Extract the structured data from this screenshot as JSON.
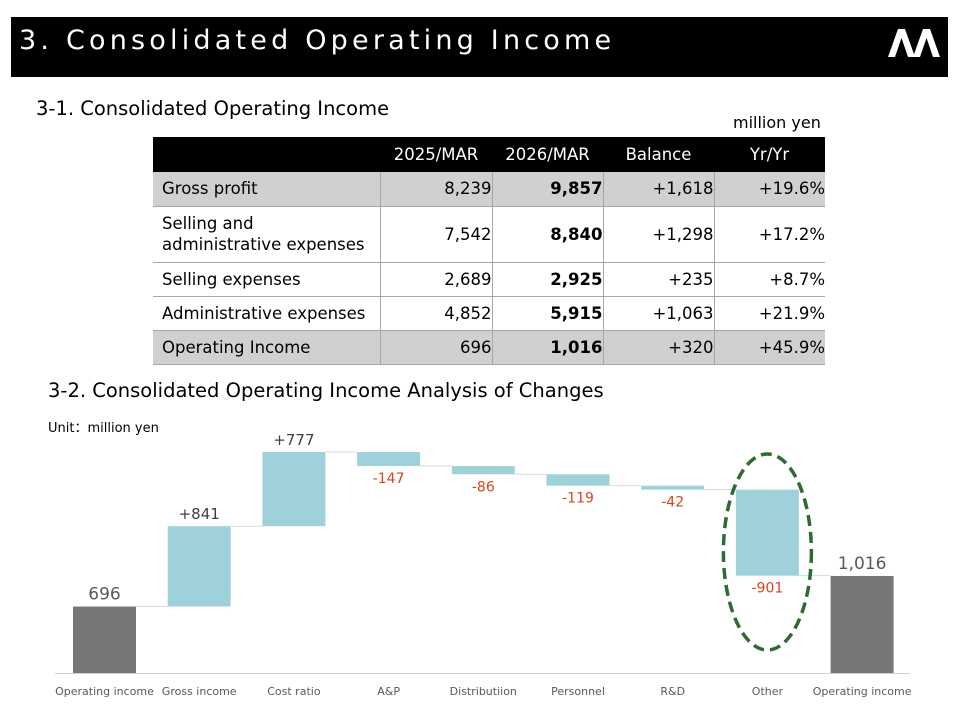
{
  "header": {
    "title": "3.  Consolidated Operating Income"
  },
  "section1": {
    "title": "3-1. Consolidated Operating Income",
    "unit": "million yen",
    "table": {
      "columns": [
        "",
        "2025/MAR",
        "2026/MAR",
        "Balance",
        "Yr/Yr"
      ],
      "rows": [
        {
          "label": "Gross profit",
          "prev": "8,239",
          "curr": "9,857",
          "balance": "+1,618",
          "yoy": "+19.6%",
          "shaded": true
        },
        {
          "label": "Selling and\nadministrative expenses",
          "prev": "7,542",
          "curr": "8,840",
          "balance": "+1,298",
          "yoy": "+17.2%",
          "shaded": false
        },
        {
          "label": "Selling expenses",
          "prev": "2,689",
          "curr": "2,925",
          "balance": "+235",
          "yoy": "+8.7%",
          "shaded": false
        },
        {
          "label": "Administrative expenses",
          "prev": "4,852",
          "curr": "5,915",
          "balance": "+1,063",
          "yoy": "+21.9%",
          "shaded": false
        },
        {
          "label": "Operating Income",
          "prev": "696",
          "curr": "1,016",
          "balance": "+320",
          "yoy": "+45.9%",
          "shaded": true
        }
      ]
    }
  },
  "section2": {
    "title": "3-2. Consolidated Operating Income Analysis of Changes",
    "unit": "Unit：million yen"
  },
  "colors": {
    "total_bar": "#767676",
    "delta_bar": "#9fd1db",
    "negative_label": "#d9441c",
    "positive_label": "#404040",
    "highlight_ellipse": "#2e6b2e"
  },
  "chart_data": {
    "type": "waterfall",
    "categories": [
      "Operating income",
      "Gross income",
      "Cost ratio",
      "A&P",
      "Distributiion",
      "Personnel",
      "R&D",
      "Other",
      "Operating income"
    ],
    "values": [
      696,
      841,
      777,
      -147,
      -86,
      -119,
      -42,
      -901,
      1016
    ],
    "kinds": [
      "total",
      "delta",
      "delta",
      "delta",
      "delta",
      "delta",
      "delta",
      "delta",
      "total"
    ],
    "labels": [
      "696",
      "+841",
      "+777",
      "-147",
      "-86",
      "-119",
      "-42",
      "-901",
      "1,016"
    ],
    "highlighted_category": "Other",
    "unit": "million yen"
  }
}
